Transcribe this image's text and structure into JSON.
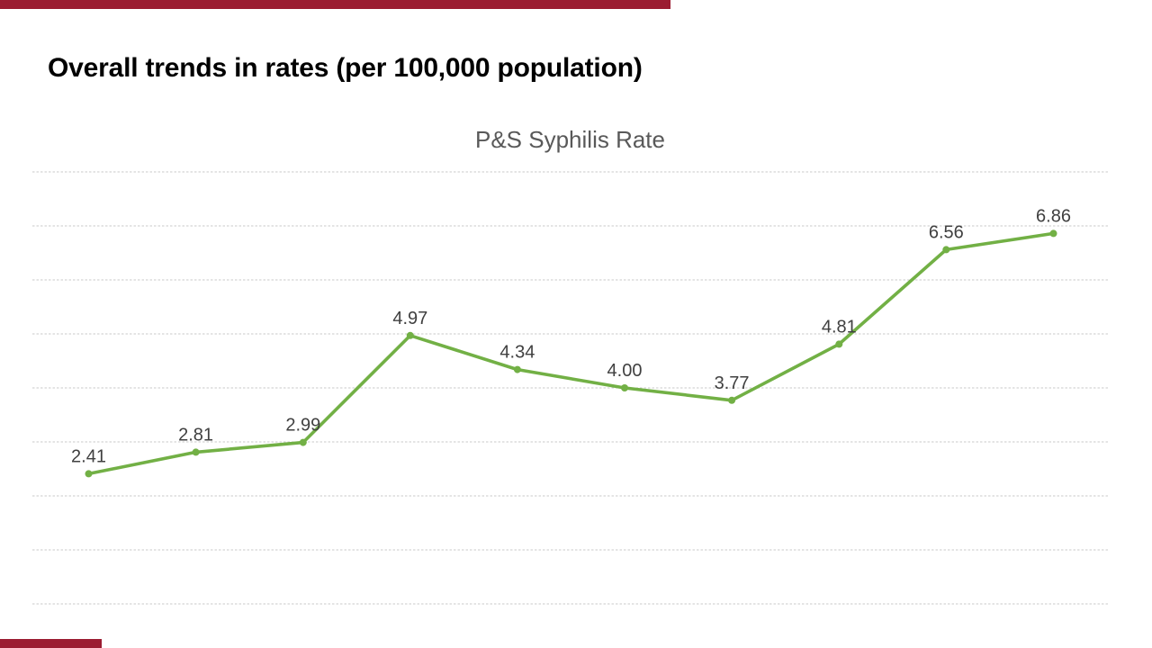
{
  "page": {
    "title": "Overall trends in rates (per 100,000 population)"
  },
  "decor": {
    "accent_color": "#9B1C31"
  },
  "chart_data": {
    "type": "line",
    "title": "P&S Syphilis Rate",
    "series": [
      {
        "name": "P&S Syphilis Rate",
        "values": [
          2.41,
          2.81,
          2.99,
          4.97,
          4.34,
          4.0,
          3.77,
          4.81,
          6.56,
          6.86
        ],
        "point_labels": [
          "2.41",
          "2.81",
          "2.99",
          "4.97",
          "4.34",
          "4.00",
          "3.77",
          "4.81",
          "6.56",
          "6.86"
        ]
      }
    ],
    "x_tick_labels_visible": false,
    "y_axis": {
      "min": 0,
      "max": 8,
      "gridline_step": 1,
      "tick_labels_visible": false
    },
    "grid": true,
    "gridline_style": "dashed",
    "legend": "none",
    "data_labels_position": "above",
    "colors": {
      "line": "#72B045",
      "marker": "#72B045",
      "data_label": "#404040",
      "gridline": "#C9C9C9",
      "title": "#595959"
    }
  }
}
